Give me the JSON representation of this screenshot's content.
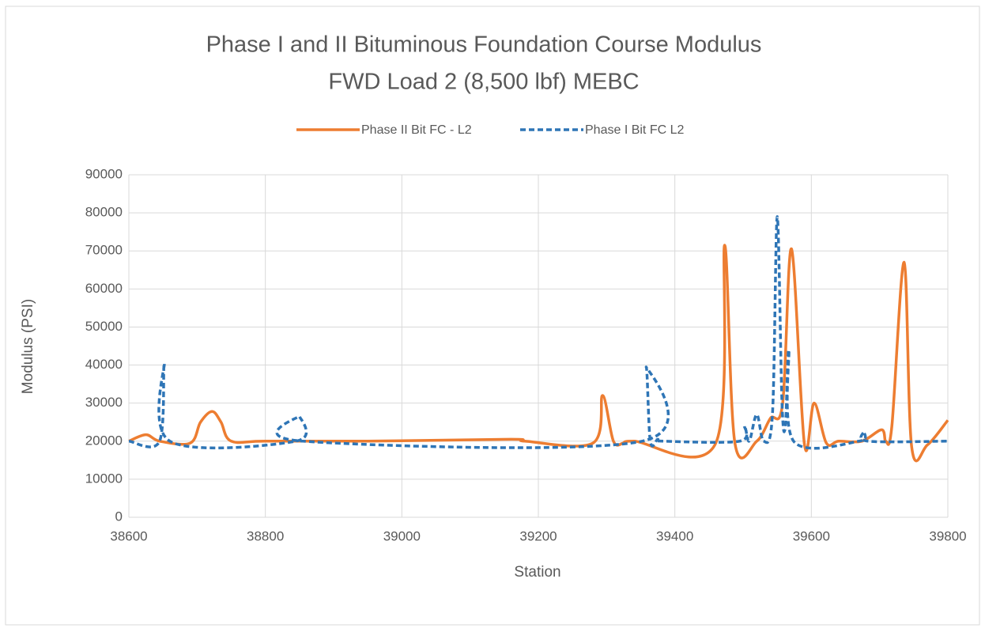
{
  "chart_data": {
    "type": "line",
    "title": "Phase I and II Bituminous Foundation Course Modulus",
    "subtitle": "FWD Load 2 (8,500 lbf) MEBC",
    "x_label": "Station",
    "y_label": "Modulus (PSI)",
    "xlim": [
      38600,
      39800
    ],
    "xticks": [
      38600,
      38800,
      39000,
      39200,
      39400,
      39600,
      39800
    ],
    "ylim": [
      0,
      90000
    ],
    "yticks": [
      0,
      10000,
      20000,
      30000,
      40000,
      50000,
      60000,
      70000,
      80000,
      90000
    ],
    "grid": true,
    "legend": "top",
    "smooth": true,
    "series": [
      {
        "name": "Phase II Bit FC - L2",
        "color": "#ed7d31",
        "dash": false,
        "x": [
          38600,
          38625,
          38645,
          38690,
          38705,
          38722,
          38735,
          38750,
          38800,
          38950,
          39160,
          39180,
          39280,
          39294,
          39310,
          39325,
          39340,
          39460,
          39473,
          39488,
          39520,
          39540,
          39558,
          39571,
          39590,
          39604,
          39622,
          39640,
          39674,
          39703,
          39709,
          39718,
          39736,
          39747,
          39770,
          39800
        ],
        "values": [
          20000,
          21700,
          20000,
          19500,
          25000,
          27800,
          25000,
          20000,
          20000,
          20000,
          20500,
          20000,
          19500,
          32000,
          20000,
          19500,
          20000,
          19500,
          71500,
          19500,
          20000,
          26000,
          30000,
          70500,
          19000,
          30000,
          19500,
          20000,
          20000,
          23000,
          20000,
          24000,
          67000,
          18500,
          19000,
          25500
        ]
      },
      {
        "name": "Phase I Bit FC L2",
        "color": "#2e75b6",
        "dash": true,
        "x": [
          38600,
          38645,
          38652,
          38660,
          38845,
          38850,
          38855,
          39352,
          39358,
          39364,
          39375,
          39382,
          39495,
          39502,
          39509,
          39520,
          39530,
          39543,
          39550,
          39557,
          39562,
          39567,
          39574,
          39670,
          39677,
          39683,
          39800
        ],
        "values": [
          20000,
          20000,
          40500,
          20000,
          20000,
          26500,
          20000,
          20000,
          39500,
          20000,
          20500,
          20000,
          20000,
          24000,
          20000,
          27000,
          20000,
          27000,
          79000,
          30000,
          24000,
          44000,
          20000,
          20000,
          22500,
          20000,
          20000
        ]
      }
    ]
  }
}
